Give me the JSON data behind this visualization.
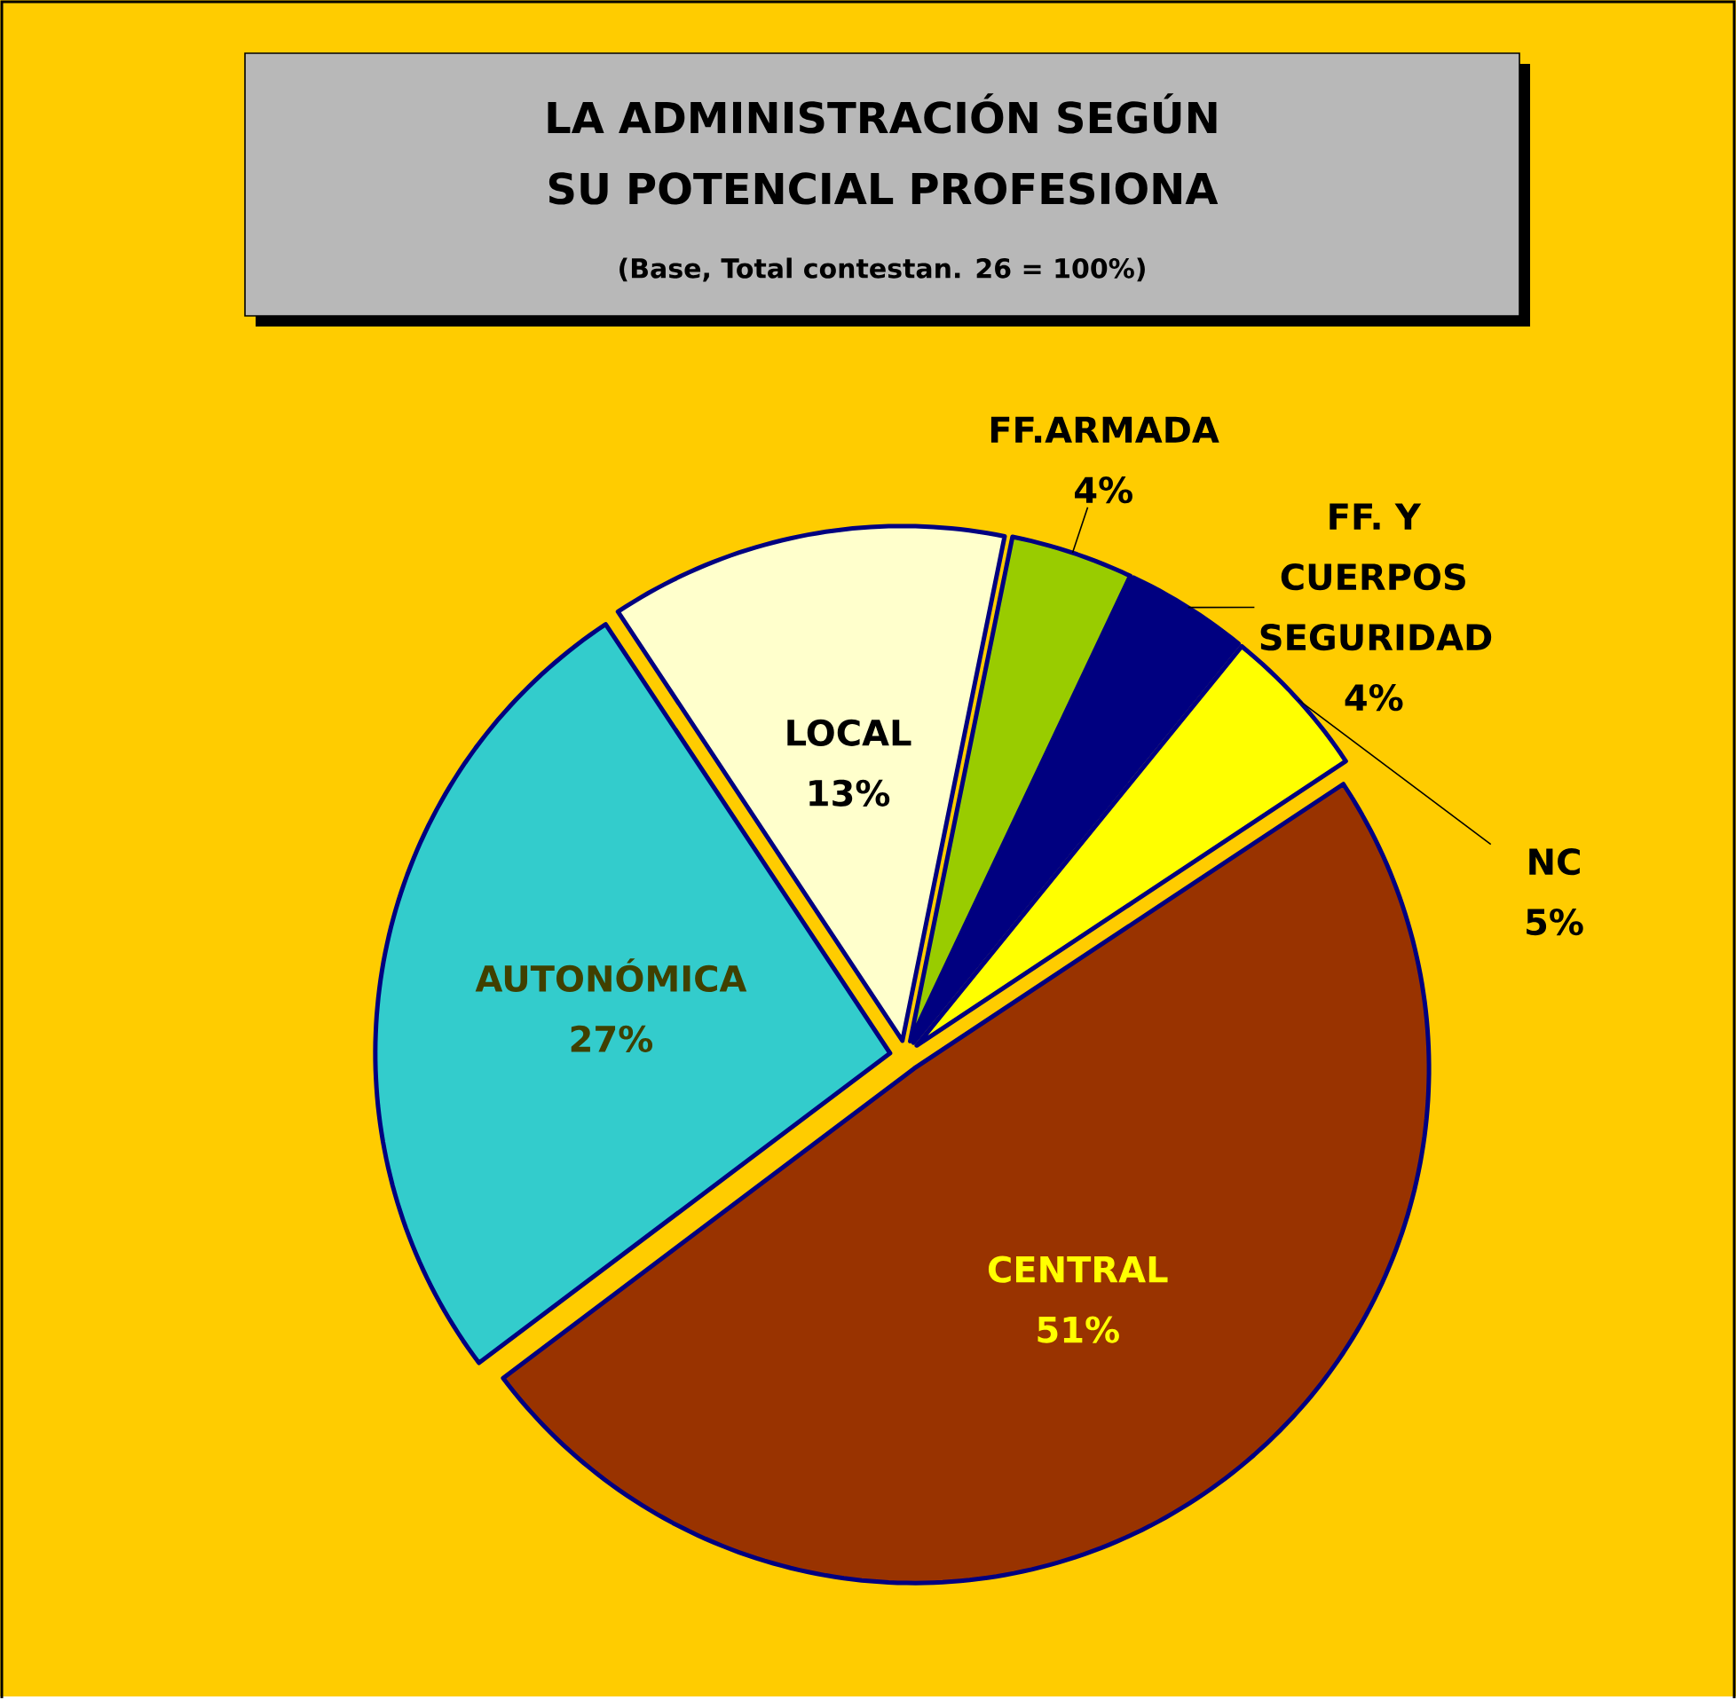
{
  "chart_data": {
    "type": "pie",
    "title": "LA ADMINISTRACIÓN SEGÚN SU POTENCIAL PROFESIONA",
    "subtitle": "(Base, Total contestan. 26 = 100%)",
    "categories": [
      "CENTRAL",
      "NC",
      "FF. Y CUERPOS SEGURIDAD",
      "FF.ARMADA",
      "LOCAL",
      "AUTONÓMICA"
    ],
    "values": [
      51,
      5,
      4,
      4,
      13,
      27
    ],
    "value_labels": [
      "51%",
      "5%",
      "4%",
      "4%",
      "13%",
      "27%"
    ],
    "colors": [
      "#993300",
      "#ffff00",
      "#000080",
      "#99cc00",
      "#ffffcc",
      "#33cccc"
    ]
  }
}
